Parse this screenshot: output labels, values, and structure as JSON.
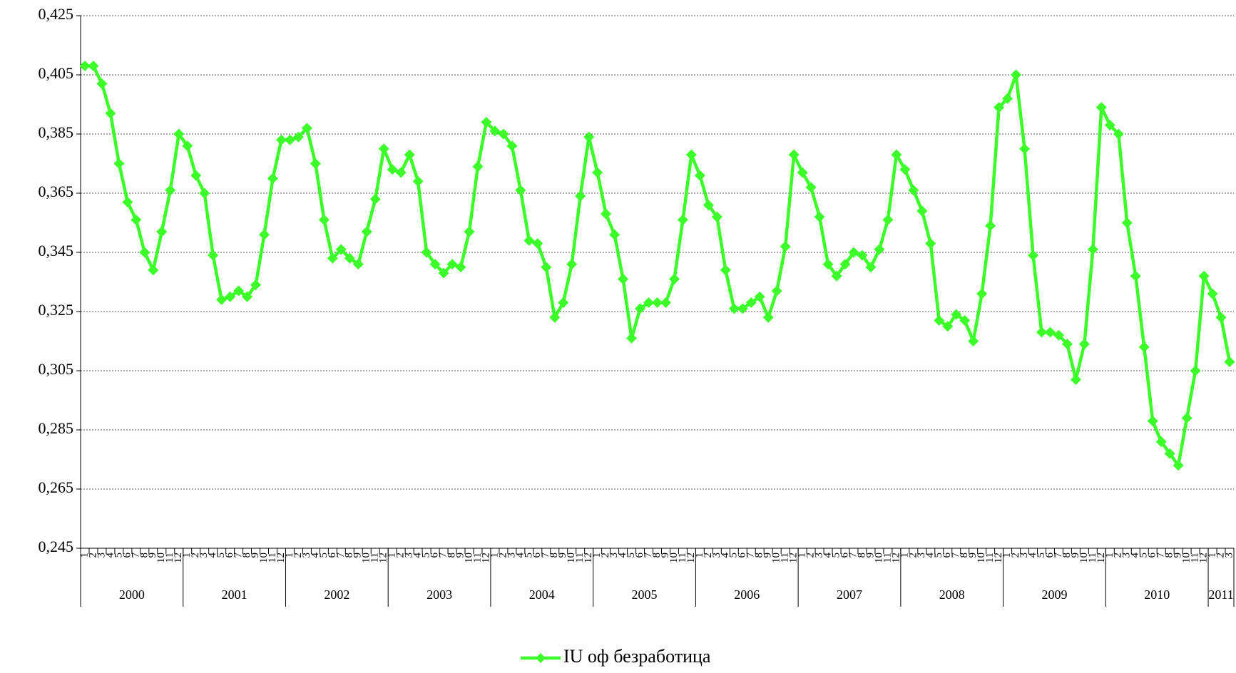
{
  "chart_data": {
    "type": "line",
    "categories": [
      "1",
      "2",
      "3",
      "4",
      "5",
      "6",
      "7",
      "8",
      "9",
      "10",
      "11",
      "12",
      "1",
      "2",
      "3",
      "4",
      "5",
      "6",
      "7",
      "8",
      "9",
      "10",
      "11",
      "12",
      "1",
      "2",
      "3",
      "4",
      "5",
      "6",
      "7",
      "8",
      "9",
      "10",
      "11",
      "12",
      "1",
      "2",
      "3",
      "4",
      "5",
      "6",
      "7",
      "8",
      "9",
      "10",
      "11",
      "12",
      "1",
      "2",
      "3",
      "4",
      "5",
      "6",
      "7",
      "8",
      "9",
      "10",
      "11",
      "12",
      "1",
      "2",
      "3",
      "4",
      "5",
      "6",
      "7",
      "8",
      "9",
      "10",
      "11",
      "12",
      "1",
      "2",
      "3",
      "4",
      "5",
      "6",
      "7",
      "8",
      "9",
      "10",
      "11",
      "12",
      "1",
      "2",
      "3",
      "4",
      "5",
      "6",
      "7",
      "8",
      "9",
      "10",
      "11",
      "12",
      "1",
      "2",
      "3",
      "4",
      "5",
      "6",
      "7",
      "8",
      "9",
      "10",
      "11",
      "12",
      "1",
      "2",
      "3",
      "4",
      "5",
      "6",
      "7",
      "8",
      "9",
      "10",
      "11",
      "12",
      "1",
      "2",
      "3",
      "4",
      "5",
      "6",
      "7",
      "8",
      "9",
      "10",
      "11",
      "12",
      "1",
      "2",
      "3"
    ],
    "groups": [
      "2000",
      "2001",
      "2002",
      "2003",
      "2004",
      "2005",
      "2006",
      "2007",
      "2008",
      "2009",
      "2010",
      "2011"
    ],
    "series": [
      {
        "name": "IU оф безработица",
        "color": "#3cff2a",
        "values": [
          0.408,
          0.408,
          0.402,
          0.392,
          0.375,
          0.362,
          0.356,
          0.345,
          0.339,
          0.352,
          0.366,
          0.385,
          0.381,
          0.371,
          0.365,
          0.344,
          0.329,
          0.33,
          0.332,
          0.33,
          0.334,
          0.351,
          0.37,
          0.383,
          0.383,
          0.384,
          0.387,
          0.375,
          0.356,
          0.343,
          0.346,
          0.343,
          0.341,
          0.352,
          0.363,
          0.38,
          0.373,
          0.372,
          0.378,
          0.369,
          0.345,
          0.341,
          0.338,
          0.341,
          0.34,
          0.352,
          0.374,
          0.389,
          0.386,
          0.385,
          0.381,
          0.366,
          0.349,
          0.348,
          0.34,
          0.323,
          0.328,
          0.341,
          0.364,
          0.384,
          0.372,
          0.358,
          0.351,
          0.336,
          0.316,
          0.326,
          0.328,
          0.328,
          0.328,
          0.336,
          0.356,
          0.378,
          0.371,
          0.361,
          0.357,
          0.339,
          0.326,
          0.326,
          0.328,
          0.33,
          0.323,
          0.332,
          0.347,
          0.378,
          0.372,
          0.367,
          0.357,
          0.341,
          0.337,
          0.341,
          0.345,
          0.344,
          0.34,
          0.346,
          0.356,
          0.378,
          0.373,
          0.366,
          0.359,
          0.348,
          0.322,
          0.32,
          0.324,
          0.322,
          0.315,
          0.331,
          0.354,
          0.394,
          0.397,
          0.405,
          0.38,
          0.344,
          0.318,
          0.318,
          0.317,
          0.314,
          0.302,
          0.314,
          0.346,
          0.394,
          0.388,
          0.385,
          0.355,
          0.337,
          0.313,
          0.288,
          0.281,
          0.277,
          0.273,
          0.289,
          0.305,
          0.337,
          0.331,
          0.323,
          0.308
        ]
      }
    ],
    "ylim": [
      0.245,
      0.425
    ],
    "yticks": [
      {
        "value": 0.245,
        "label": "0,245"
      },
      {
        "value": 0.265,
        "label": "0,265"
      },
      {
        "value": 0.285,
        "label": "0,285"
      },
      {
        "value": 0.305,
        "label": "0,305"
      },
      {
        "value": 0.325,
        "label": "0,325"
      },
      {
        "value": 0.345,
        "label": "0,345"
      },
      {
        "value": 0.365,
        "label": "0,365"
      },
      {
        "value": 0.385,
        "label": "0,385"
      },
      {
        "value": 0.405,
        "label": "0,405"
      },
      {
        "value": 0.425,
        "label": "0,425"
      }
    ],
    "grid": true,
    "legend": "bottom"
  }
}
